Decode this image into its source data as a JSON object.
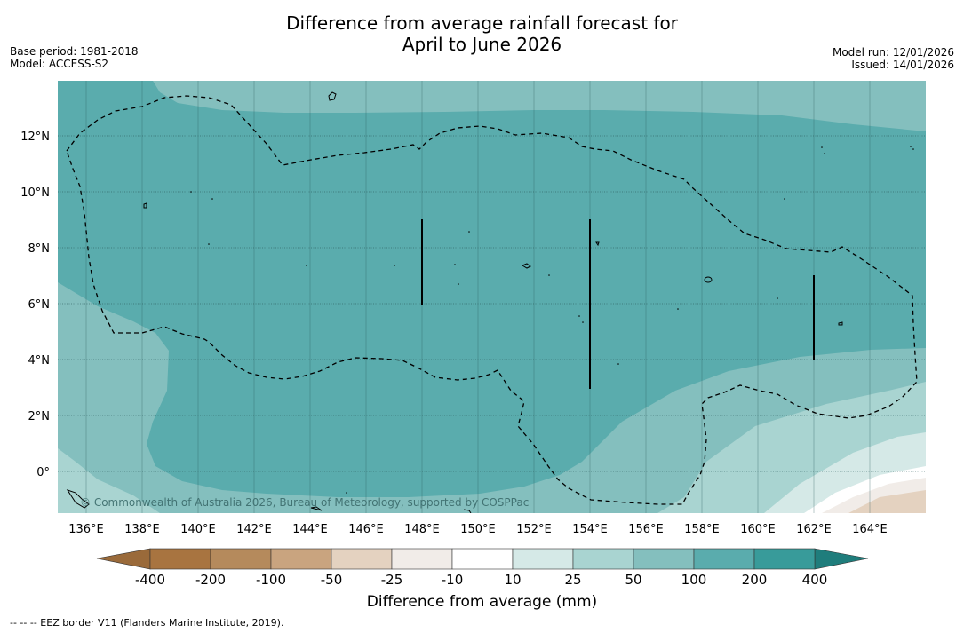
{
  "title_line1": "Difference from average rainfall forecast for",
  "title_line2": "April to June 2026",
  "base_period": "Base period: 1981-2018",
  "model": "Model: ACCESS-S2",
  "model_run": "Model run: 12/01/2026",
  "issued": "Issued: 14/01/2026",
  "copyright": "© Commonwealth of Australia 2026, Bureau of Meteorology, supported by COSPPac",
  "footnote": "--  --  -- EEZ border V11 (Flanders Marine Institute, 2019).",
  "colorbar_title": "Difference from average (mm)",
  "lon_labels": [
    "136°E",
    "138°E",
    "140°E",
    "142°E",
    "144°E",
    "146°E",
    "148°E",
    "150°E",
    "152°E",
    "154°E",
    "156°E",
    "158°E",
    "160°E",
    "162°E",
    "164°E"
  ],
  "lat_labels": [
    "12°N",
    "10°N",
    "8°N",
    "6°N",
    "4°N",
    "2°N",
    "0°"
  ],
  "colorbar_ticks": [
    "-400",
    "-200",
    "-100",
    "-50",
    "-25",
    "-10",
    "10",
    "25",
    "50",
    "100",
    "200",
    "400"
  ],
  "colorbar_colors": [
    "#a87440",
    "#b58a5c",
    "#c9a47f",
    "#e4d2c0",
    "#f1ece8",
    "#ffffff",
    "#d5e9e7",
    "#a9d4d1",
    "#84bfbe",
    "#5aacad",
    "#389b9a",
    "#1f7d7c"
  ],
  "region_colors": {
    "band_50_100": "#84bfbe",
    "band_100_200": "#5aacad",
    "band_25_50": "#a9d4d1",
    "band_10_25": "#d5e9e7",
    "band_neutral": "#ffffff",
    "band_m25_m10": "#f1ece8",
    "band_m50_m25": "#e4d2c0"
  }
}
